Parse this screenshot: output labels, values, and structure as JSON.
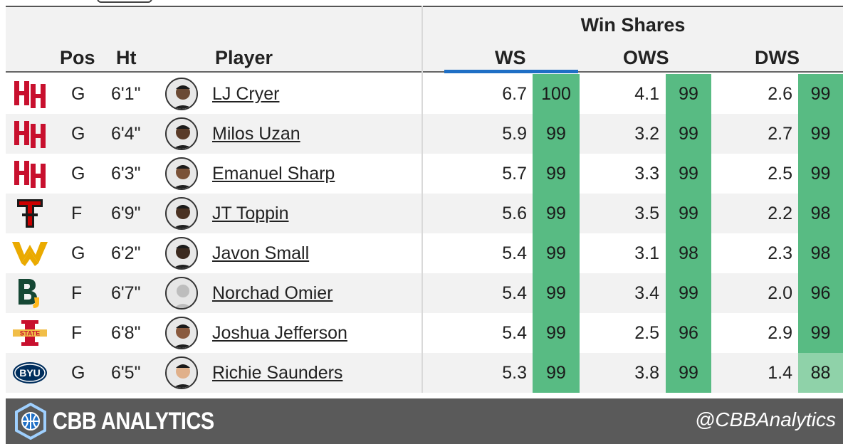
{
  "header": {
    "group_label": "Win Shares",
    "columns": {
      "pos": "Pos",
      "ht": "Ht",
      "player": "Player",
      "ws": "WS",
      "ows": "OWS",
      "dws": "DWS"
    }
  },
  "rows": [
    {
      "team_icon": "houston-logo-icon",
      "pos": "G",
      "ht": "6'1\"",
      "name": "LJ Cryer",
      "ws": "6.7",
      "ws_pct": "100",
      "ows": "4.1",
      "ows_pct": "99",
      "dws": "2.6",
      "dws_pct": "99"
    },
    {
      "team_icon": "houston-logo-icon",
      "pos": "G",
      "ht": "6'4\"",
      "name": "Milos Uzan",
      "ws": "5.9",
      "ws_pct": "99",
      "ows": "3.2",
      "ows_pct": "99",
      "dws": "2.7",
      "dws_pct": "99"
    },
    {
      "team_icon": "houston-logo-icon",
      "pos": "G",
      "ht": "6'3\"",
      "name": "Emanuel Sharp",
      "ws": "5.7",
      "ws_pct": "99",
      "ows": "3.3",
      "ows_pct": "99",
      "dws": "2.5",
      "dws_pct": "99"
    },
    {
      "team_icon": "texas-tech-logo-icon",
      "pos": "F",
      "ht": "6'9\"",
      "name": "JT Toppin",
      "ws": "5.6",
      "ws_pct": "99",
      "ows": "3.5",
      "ows_pct": "99",
      "dws": "2.2",
      "dws_pct": "98"
    },
    {
      "team_icon": "west-virginia-logo-icon",
      "pos": "G",
      "ht": "6'2\"",
      "name": "Javon Small",
      "ws": "5.4",
      "ws_pct": "99",
      "ows": "3.1",
      "ows_pct": "98",
      "dws": "2.3",
      "dws_pct": "98"
    },
    {
      "team_icon": "baylor-logo-icon",
      "pos": "F",
      "ht": "6'7\"",
      "name": "Norchad Omier",
      "ws": "5.4",
      "ws_pct": "99",
      "ows": "3.4",
      "ows_pct": "99",
      "dws": "2.0",
      "dws_pct": "96"
    },
    {
      "team_icon": "iowa-state-logo-icon",
      "pos": "F",
      "ht": "6'8\"",
      "name": "Joshua Jefferson",
      "ws": "5.4",
      "ws_pct": "99",
      "ows": "2.5",
      "ows_pct": "96",
      "dws": "2.9",
      "dws_pct": "99"
    },
    {
      "team_icon": "byu-logo-icon",
      "pos": "G",
      "ht": "6'5\"",
      "name": "Richie Saunders",
      "ws": "5.3",
      "ws_pct": "99",
      "ows": "3.8",
      "ows_pct": "99",
      "dws": "1.4",
      "dws_pct": "88"
    }
  ],
  "colors": {
    "percentile_green": "#58bb83",
    "percentile_light_green": "#8fd2a9",
    "ws_underline": "#1f6fc5",
    "footer": "#5a5a5a"
  },
  "footer": {
    "brand": "CBB ANALYTICS",
    "handle": "@CBBAnalytics"
  }
}
